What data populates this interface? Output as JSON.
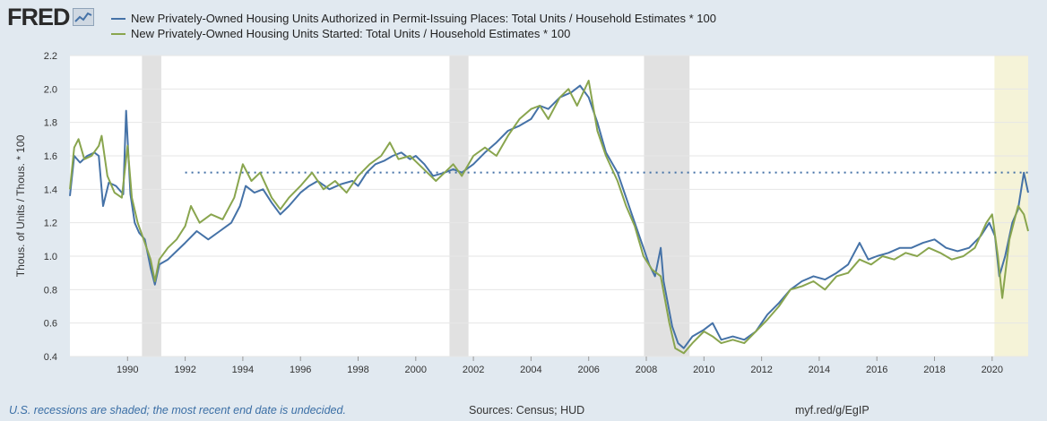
{
  "header": {
    "logo_text": "FRED",
    "logo_icon": "chart-line-icon"
  },
  "footer": {
    "recession_note": "U.S. recessions are shaded; the most recent end date is undecided.",
    "sources": "Sources: Census; HUD",
    "url": "myf.red/g/EgIP"
  },
  "colors": {
    "background": "#e1e9f0",
    "plot_background": "#ffffff",
    "series1": "#4572a7",
    "series2": "#89a54e",
    "recession": "#e1e1e1",
    "recession_ongoing": "#f5f3d8"
  },
  "chart_data": {
    "type": "line",
    "title": "",
    "xlabel": "",
    "ylabel": "Thous. of Units / Thous. * 100",
    "xlim": [
      1988.0,
      2021.25
    ],
    "ylim": [
      0.4,
      2.2
    ],
    "yticks": [
      0.4,
      0.6,
      0.8,
      1.0,
      1.2,
      1.4,
      1.6,
      1.8,
      2.0,
      2.2
    ],
    "ytick_labels": [
      "0.4",
      "0.6",
      "0.8",
      "1.0",
      "1.2",
      "1.4",
      "1.6",
      "1.8",
      "2.0",
      "2.2"
    ],
    "xticks": [
      1990,
      1992,
      1994,
      1996,
      1998,
      2000,
      2002,
      2004,
      2006,
      2008,
      2010,
      2012,
      2014,
      2016,
      2018,
      2020
    ],
    "xtick_labels": [
      "1990",
      "1992",
      "1994",
      "1996",
      "1998",
      "2000",
      "2002",
      "2004",
      "2006",
      "2008",
      "2010",
      "2012",
      "2014",
      "2016",
      "2018",
      "2020"
    ],
    "recessions": [
      {
        "start": 1990.5,
        "end": 1991.17
      },
      {
        "start": 2001.17,
        "end": 2001.83
      },
      {
        "start": 2007.92,
        "end": 2009.5
      },
      {
        "start": 2020.08,
        "end": 2021.25,
        "ongoing": true
      }
    ],
    "reference_line": {
      "y": 1.5,
      "start": 1992.0,
      "end": 2021.25
    },
    "series": [
      {
        "name": "New Privately-Owned Housing Units Authorized in Permit-Issuing Places: Total Units / Household Estimates * 100",
        "color": "#4572a7",
        "points": [
          [
            1988.0,
            1.36
          ],
          [
            1988.15,
            1.6
          ],
          [
            1988.35,
            1.56
          ],
          [
            1988.6,
            1.6
          ],
          [
            1988.85,
            1.62
          ],
          [
            1989.0,
            1.6
          ],
          [
            1989.15,
            1.3
          ],
          [
            1989.35,
            1.44
          ],
          [
            1989.6,
            1.42
          ],
          [
            1989.85,
            1.37
          ],
          [
            1989.95,
            1.87
          ],
          [
            1990.1,
            1.37
          ],
          [
            1990.25,
            1.2
          ],
          [
            1990.4,
            1.14
          ],
          [
            1990.6,
            1.1
          ],
          [
            1990.8,
            0.93
          ],
          [
            1990.95,
            0.83
          ],
          [
            1991.1,
            0.95
          ],
          [
            1991.4,
            0.98
          ],
          [
            1991.7,
            1.03
          ],
          [
            1992.0,
            1.08
          ],
          [
            1992.4,
            1.15
          ],
          [
            1992.8,
            1.1
          ],
          [
            1993.2,
            1.15
          ],
          [
            1993.6,
            1.2
          ],
          [
            1993.9,
            1.3
          ],
          [
            1994.1,
            1.42
          ],
          [
            1994.4,
            1.38
          ],
          [
            1994.7,
            1.4
          ],
          [
            1995.0,
            1.32
          ],
          [
            1995.3,
            1.25
          ],
          [
            1995.6,
            1.3
          ],
          [
            1996.0,
            1.38
          ],
          [
            1996.3,
            1.42
          ],
          [
            1996.6,
            1.45
          ],
          [
            1997.0,
            1.4
          ],
          [
            1997.4,
            1.43
          ],
          [
            1997.8,
            1.45
          ],
          [
            1998.0,
            1.42
          ],
          [
            1998.3,
            1.5
          ],
          [
            1998.6,
            1.55
          ],
          [
            1998.9,
            1.57
          ],
          [
            1999.2,
            1.6
          ],
          [
            1999.5,
            1.62
          ],
          [
            1999.8,
            1.58
          ],
          [
            2000.0,
            1.6
          ],
          [
            2000.3,
            1.55
          ],
          [
            2000.6,
            1.48
          ],
          [
            2001.0,
            1.5
          ],
          [
            2001.3,
            1.52
          ],
          [
            2001.6,
            1.5
          ],
          [
            2002.0,
            1.55
          ],
          [
            2002.4,
            1.62
          ],
          [
            2002.8,
            1.68
          ],
          [
            2003.2,
            1.75
          ],
          [
            2003.6,
            1.78
          ],
          [
            2004.0,
            1.82
          ],
          [
            2004.3,
            1.9
          ],
          [
            2004.6,
            1.88
          ],
          [
            2005.0,
            1.95
          ],
          [
            2005.4,
            1.98
          ],
          [
            2005.7,
            2.02
          ],
          [
            2006.0,
            1.95
          ],
          [
            2006.3,
            1.8
          ],
          [
            2006.6,
            1.62
          ],
          [
            2007.0,
            1.5
          ],
          [
            2007.3,
            1.35
          ],
          [
            2007.6,
            1.2
          ],
          [
            2007.9,
            1.05
          ],
          [
            2008.1,
            0.95
          ],
          [
            2008.3,
            0.88
          ],
          [
            2008.5,
            1.05
          ],
          [
            2008.6,
            0.85
          ],
          [
            2008.9,
            0.58
          ],
          [
            2009.1,
            0.48
          ],
          [
            2009.3,
            0.45
          ],
          [
            2009.6,
            0.52
          ],
          [
            2010.0,
            0.56
          ],
          [
            2010.3,
            0.6
          ],
          [
            2010.6,
            0.5
          ],
          [
            2011.0,
            0.52
          ],
          [
            2011.4,
            0.5
          ],
          [
            2011.8,
            0.55
          ],
          [
            2012.2,
            0.65
          ],
          [
            2012.6,
            0.72
          ],
          [
            2013.0,
            0.8
          ],
          [
            2013.4,
            0.85
          ],
          [
            2013.8,
            0.88
          ],
          [
            2014.2,
            0.86
          ],
          [
            2014.6,
            0.9
          ],
          [
            2015.0,
            0.95
          ],
          [
            2015.4,
            1.08
          ],
          [
            2015.7,
            0.98
          ],
          [
            2016.0,
            1.0
          ],
          [
            2016.4,
            1.02
          ],
          [
            2016.8,
            1.05
          ],
          [
            2017.2,
            1.05
          ],
          [
            2017.6,
            1.08
          ],
          [
            2018.0,
            1.1
          ],
          [
            2018.4,
            1.05
          ],
          [
            2018.8,
            1.03
          ],
          [
            2019.2,
            1.05
          ],
          [
            2019.6,
            1.12
          ],
          [
            2019.9,
            1.2
          ],
          [
            2020.1,
            1.12
          ],
          [
            2020.25,
            0.88
          ],
          [
            2020.45,
            1.0
          ],
          [
            2020.7,
            1.2
          ],
          [
            2020.9,
            1.28
          ],
          [
            2021.1,
            1.5
          ],
          [
            2021.25,
            1.38
          ]
        ]
      },
      {
        "name": "New Privately-Owned Housing Units Started: Total Units / Household Estimates * 100",
        "color": "#89a54e",
        "points": [
          [
            1988.0,
            1.4
          ],
          [
            1988.15,
            1.65
          ],
          [
            1988.3,
            1.7
          ],
          [
            1988.5,
            1.58
          ],
          [
            1988.75,
            1.6
          ],
          [
            1989.0,
            1.66
          ],
          [
            1989.1,
            1.72
          ],
          [
            1989.3,
            1.48
          ],
          [
            1989.55,
            1.38
          ],
          [
            1989.8,
            1.35
          ],
          [
            1990.0,
            1.66
          ],
          [
            1990.15,
            1.35
          ],
          [
            1990.35,
            1.2
          ],
          [
            1990.6,
            1.08
          ],
          [
            1990.8,
            0.98
          ],
          [
            1990.95,
            0.85
          ],
          [
            1991.1,
            0.98
          ],
          [
            1991.4,
            1.05
          ],
          [
            1991.7,
            1.1
          ],
          [
            1992.0,
            1.18
          ],
          [
            1992.2,
            1.3
          ],
          [
            1992.5,
            1.2
          ],
          [
            1992.9,
            1.25
          ],
          [
            1993.3,
            1.22
          ],
          [
            1993.7,
            1.35
          ],
          [
            1994.0,
            1.55
          ],
          [
            1994.3,
            1.45
          ],
          [
            1994.6,
            1.5
          ],
          [
            1995.0,
            1.35
          ],
          [
            1995.3,
            1.28
          ],
          [
            1995.6,
            1.35
          ],
          [
            1996.0,
            1.42
          ],
          [
            1996.4,
            1.5
          ],
          [
            1996.8,
            1.4
          ],
          [
            1997.2,
            1.45
          ],
          [
            1997.6,
            1.38
          ],
          [
            1998.0,
            1.48
          ],
          [
            1998.4,
            1.55
          ],
          [
            1998.8,
            1.6
          ],
          [
            1999.1,
            1.68
          ],
          [
            1999.4,
            1.58
          ],
          [
            1999.8,
            1.6
          ],
          [
            2000.1,
            1.55
          ],
          [
            2000.4,
            1.5
          ],
          [
            2000.7,
            1.45
          ],
          [
            2001.0,
            1.5
          ],
          [
            2001.3,
            1.55
          ],
          [
            2001.6,
            1.48
          ],
          [
            2002.0,
            1.6
          ],
          [
            2002.4,
            1.65
          ],
          [
            2002.8,
            1.6
          ],
          [
            2003.2,
            1.72
          ],
          [
            2003.6,
            1.82
          ],
          [
            2004.0,
            1.88
          ],
          [
            2004.3,
            1.9
          ],
          [
            2004.6,
            1.82
          ],
          [
            2005.0,
            1.95
          ],
          [
            2005.3,
            2.0
          ],
          [
            2005.6,
            1.9
          ],
          [
            2006.0,
            2.05
          ],
          [
            2006.3,
            1.75
          ],
          [
            2006.6,
            1.6
          ],
          [
            2007.0,
            1.45
          ],
          [
            2007.3,
            1.3
          ],
          [
            2007.6,
            1.18
          ],
          [
            2007.9,
            1.0
          ],
          [
            2008.2,
            0.92
          ],
          [
            2008.5,
            0.88
          ],
          [
            2008.8,
            0.6
          ],
          [
            2009.0,
            0.45
          ],
          [
            2009.3,
            0.42
          ],
          [
            2009.6,
            0.48
          ],
          [
            2010.0,
            0.55
          ],
          [
            2010.3,
            0.52
          ],
          [
            2010.6,
            0.48
          ],
          [
            2011.0,
            0.5
          ],
          [
            2011.4,
            0.48
          ],
          [
            2011.8,
            0.55
          ],
          [
            2012.2,
            0.62
          ],
          [
            2012.6,
            0.7
          ],
          [
            2013.0,
            0.8
          ],
          [
            2013.4,
            0.82
          ],
          [
            2013.8,
            0.85
          ],
          [
            2014.2,
            0.8
          ],
          [
            2014.6,
            0.88
          ],
          [
            2015.0,
            0.9
          ],
          [
            2015.4,
            0.98
          ],
          [
            2015.8,
            0.95
          ],
          [
            2016.2,
            1.0
          ],
          [
            2016.6,
            0.98
          ],
          [
            2017.0,
            1.02
          ],
          [
            2017.4,
            1.0
          ],
          [
            2017.8,
            1.05
          ],
          [
            2018.2,
            1.02
          ],
          [
            2018.6,
            0.98
          ],
          [
            2019.0,
            1.0
          ],
          [
            2019.4,
            1.05
          ],
          [
            2019.8,
            1.2
          ],
          [
            2020.0,
            1.25
          ],
          [
            2020.2,
            1.0
          ],
          [
            2020.35,
            0.75
          ],
          [
            2020.6,
            1.1
          ],
          [
            2020.9,
            1.3
          ],
          [
            2021.1,
            1.25
          ],
          [
            2021.25,
            1.15
          ]
        ]
      }
    ]
  }
}
